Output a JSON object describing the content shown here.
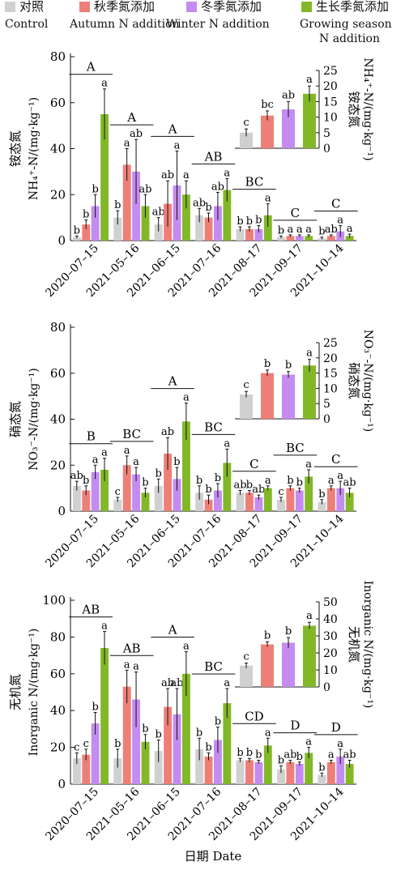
{
  "legend": {
    "items": [
      {
        "zh": "对照",
        "en": "Control",
        "color": "#d0d0d0"
      },
      {
        "zh": "秋季氮添加",
        "en": "Autumn N addition",
        "color": "#ee7f78"
      },
      {
        "zh": "冬季氮添加",
        "en": "Winter N addition",
        "color": "#c48cf0"
      },
      {
        "zh": "生长季氮添加",
        "en": "Growing season N addition",
        "color": "#82b828"
      }
    ],
    "en_growing_line1": "Growing season",
    "en_growing_line2": "N addition"
  },
  "xlabel": "日期 Date",
  "chart_data": [
    {
      "type": "bar",
      "ylabel_zh": "铵态氮",
      "ylabel_en": "NH₄⁺-N/(mg·kg⁻¹)",
      "ylim": [
        0,
        80
      ],
      "yticks": [
        0,
        20,
        40,
        60,
        80
      ],
      "categories": [
        "2020-07-15",
        "2021-05-16",
        "2021-06-15",
        "2021-07-16",
        "2021-08-17",
        "2021-09-17",
        "2021-10-14"
      ],
      "series": [
        {
          "name": "对照",
          "values": [
            1.5,
            10,
            7,
            11,
            5,
            1.5,
            1
          ]
        },
        {
          "name": "秋季氮添加",
          "values": [
            7,
            33,
            16,
            10,
            5,
            2,
            2
          ]
        },
        {
          "name": "冬季氮添加",
          "values": [
            15,
            30,
            24,
            15,
            5,
            2,
            4
          ]
        },
        {
          "name": "生长季氮添加",
          "values": [
            55,
            15,
            20,
            22,
            11,
            2,
            2
          ]
        }
      ],
      "errors": [
        [
          0.5,
          3,
          3,
          3,
          1,
          0.5,
          0.5
        ],
        [
          2,
          7,
          10,
          2,
          1,
          0.5,
          0.5
        ],
        [
          5,
          14,
          15,
          6,
          1.5,
          0.5,
          2.5
        ],
        [
          11,
          5,
          6,
          5,
          5,
          0.5,
          0.8
        ]
      ],
      "letters": [
        [
          "b",
          "b",
          "ab",
          "ab",
          "b",
          "b",
          "b"
        ],
        [
          "b",
          "a",
          "ab",
          "b",
          "b",
          "a",
          "ab"
        ],
        [
          "b",
          "ab",
          "a",
          "ab",
          "b",
          "a",
          "a"
        ],
        [
          "a",
          "ab",
          "a",
          "a",
          "a",
          "a",
          "a"
        ]
      ],
      "group_letters": [
        "A",
        "A",
        "A",
        "AB",
        "BC",
        "C",
        "C"
      ],
      "inset": {
        "ylabel_zh": "铵态氮",
        "ylabel_en": "NH₄⁺-N/(mg·kg⁻¹)",
        "ylim": [
          0,
          25
        ],
        "yticks": [
          0,
          5,
          10,
          15,
          20,
          25
        ],
        "values": [
          5,
          10.5,
          12.5,
          17.5
        ],
        "errors": [
          1.2,
          1.5,
          2.5,
          2.5
        ],
        "letters": [
          "c",
          "bc",
          "ab",
          "a"
        ]
      }
    },
    {
      "type": "bar",
      "ylabel_zh": "硝态氮",
      "ylabel_en": "NO₃⁻-N/(mg·kg⁻¹)",
      "ylim": [
        0,
        80
      ],
      "yticks": [
        0,
        20,
        40,
        60,
        80
      ],
      "categories": [
        "2020-07-15",
        "2021-05-16",
        "2021-06-15",
        "2021-07-16",
        "2021-08-17",
        "2021-09-17",
        "2021-10-14"
      ],
      "series": [
        {
          "name": "对照",
          "values": [
            11,
            5,
            11,
            8,
            8,
            5,
            4
          ]
        },
        {
          "name": "秋季氮添加",
          "values": [
            9,
            20,
            25,
            5,
            8,
            10,
            10
          ]
        },
        {
          "name": "冬季氮添加",
          "values": [
            17,
            16,
            14,
            9,
            6,
            9,
            10
          ]
        },
        {
          "name": "生长季氮添加",
          "values": [
            18,
            8,
            39,
            21,
            10,
            15,
            8
          ]
        }
      ],
      "errors": [
        [
          2,
          1,
          3,
          3,
          1,
          1,
          1
        ],
        [
          2,
          4,
          7,
          2,
          1,
          1,
          1
        ],
        [
          3,
          3,
          5,
          3,
          1,
          1,
          3
        ],
        [
          5,
          2,
          8,
          6,
          1,
          3,
          2
        ]
      ],
      "letters": [
        [
          "ab",
          "c",
          "b",
          "b",
          "ab",
          "c",
          "b"
        ],
        [
          "b",
          "a",
          "ab",
          "b",
          "b",
          "b",
          "a"
        ],
        [
          "a",
          "a",
          "b",
          "b",
          "ab",
          "b",
          "a"
        ],
        [
          "a",
          "b",
          "a",
          "a",
          "a",
          "a",
          "ab"
        ]
      ],
      "group_letters": [
        "B",
        "BC",
        "A",
        "BC",
        "C",
        "BC",
        "C"
      ],
      "inset": {
        "ylabel_zh": "硝态氮",
        "ylabel_en": "NO₃⁻-N/(mg·kg⁻¹)",
        "ylim": [
          0,
          25
        ],
        "yticks": [
          0,
          5,
          10,
          15,
          20,
          25
        ],
        "values": [
          8,
          15,
          14.5,
          17.5
        ],
        "errors": [
          1,
          1,
          1,
          2
        ],
        "letters": [
          "c",
          "b",
          "b",
          "a"
        ]
      }
    },
    {
      "type": "bar",
      "ylabel_zh": "无机氮",
      "ylabel_en": "Inorganic N/(mg·kg⁻¹)",
      "ylim": [
        0,
        100
      ],
      "yticks": [
        0,
        20,
        40,
        60,
        80,
        100
      ],
      "categories": [
        "2020-07-15",
        "2021-05-16",
        "2021-06-15",
        "2021-07-16",
        "2021-08-17",
        "2021-09-17",
        "2021-10-14"
      ],
      "series": [
        {
          "name": "对照",
          "values": [
            14,
            14,
            18,
            19,
            13,
            8,
            5
          ]
        },
        {
          "name": "秋季氮添加",
          "values": [
            16,
            53,
            42,
            15,
            13,
            12,
            12
          ]
        },
        {
          "name": "冬季氮添加",
          "values": [
            33,
            46,
            38,
            24,
            12,
            11,
            15
          ]
        },
        {
          "name": "生长季氮添加",
          "values": [
            74,
            23,
            60,
            44,
            21,
            17,
            11
          ]
        }
      ],
      "errors": [
        [
          3,
          5,
          6,
          6,
          1,
          2,
          1
        ],
        [
          3,
          9,
          10,
          2,
          1,
          1,
          1
        ],
        [
          6,
          15,
          14,
          7,
          1,
          1,
          4
        ],
        [
          9,
          4,
          12,
          8,
          4,
          3,
          2
        ]
      ],
      "letters": [
        [
          "c",
          "b",
          "b",
          "b",
          "b",
          "b",
          "b"
        ],
        [
          "c",
          "a",
          "ab",
          "b",
          "b",
          "ab",
          "a"
        ],
        [
          "b",
          "a",
          "ab",
          "b",
          "b",
          "b",
          "a"
        ],
        [
          "a",
          "b",
          "a",
          "a",
          "a",
          "a",
          "ab"
        ]
      ],
      "group_letters": [
        "AB",
        "AB",
        "A",
        "BC",
        "CD",
        "D",
        "D"
      ],
      "inset": {
        "ylabel_zh": "无机氮",
        "ylabel_en": "Inorganic N/(mg·kg⁻¹)",
        "ylim": [
          0,
          50
        ],
        "yticks": [
          0,
          10,
          20,
          30,
          40,
          50
        ],
        "values": [
          12.5,
          25,
          26,
          36
        ],
        "errors": [
          1.5,
          1.5,
          3,
          2
        ],
        "letters": [
          "c",
          "b",
          "b",
          "a"
        ]
      }
    }
  ]
}
